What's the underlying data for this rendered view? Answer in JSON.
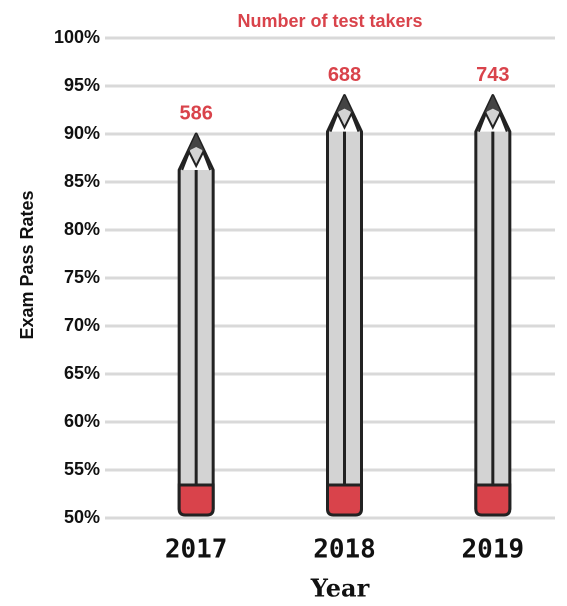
{
  "chart_data": {
    "type": "pencil-bar",
    "annotation_title": "Number of test takers",
    "ylabel": "Exam Pass Rates",
    "xlabel": "Year",
    "categories": [
      "2017",
      "2018",
      "2019"
    ],
    "values": [
      90,
      94,
      94
    ],
    "test_takers": [
      586,
      688,
      743
    ],
    "body_color": "#d3d3d3",
    "eraser_color": "#d9434b",
    "label_color": "#d9434b",
    "ylim": [
      50,
      100
    ],
    "yticks": [
      {
        "value": 50,
        "label": "50%"
      },
      {
        "value": 55,
        "label": "55%"
      },
      {
        "value": 60,
        "label": "60%"
      },
      {
        "value": 65,
        "label": "65%"
      },
      {
        "value": 70,
        "label": "70%"
      },
      {
        "value": 75,
        "label": "75%"
      },
      {
        "value": 80,
        "label": "80%"
      },
      {
        "value": 85,
        "label": "85%"
      },
      {
        "value": 90,
        "label": "90%"
      },
      {
        "value": 95,
        "label": "95%"
      },
      {
        "value": 100,
        "label": "100%"
      }
    ],
    "grid": true
  }
}
